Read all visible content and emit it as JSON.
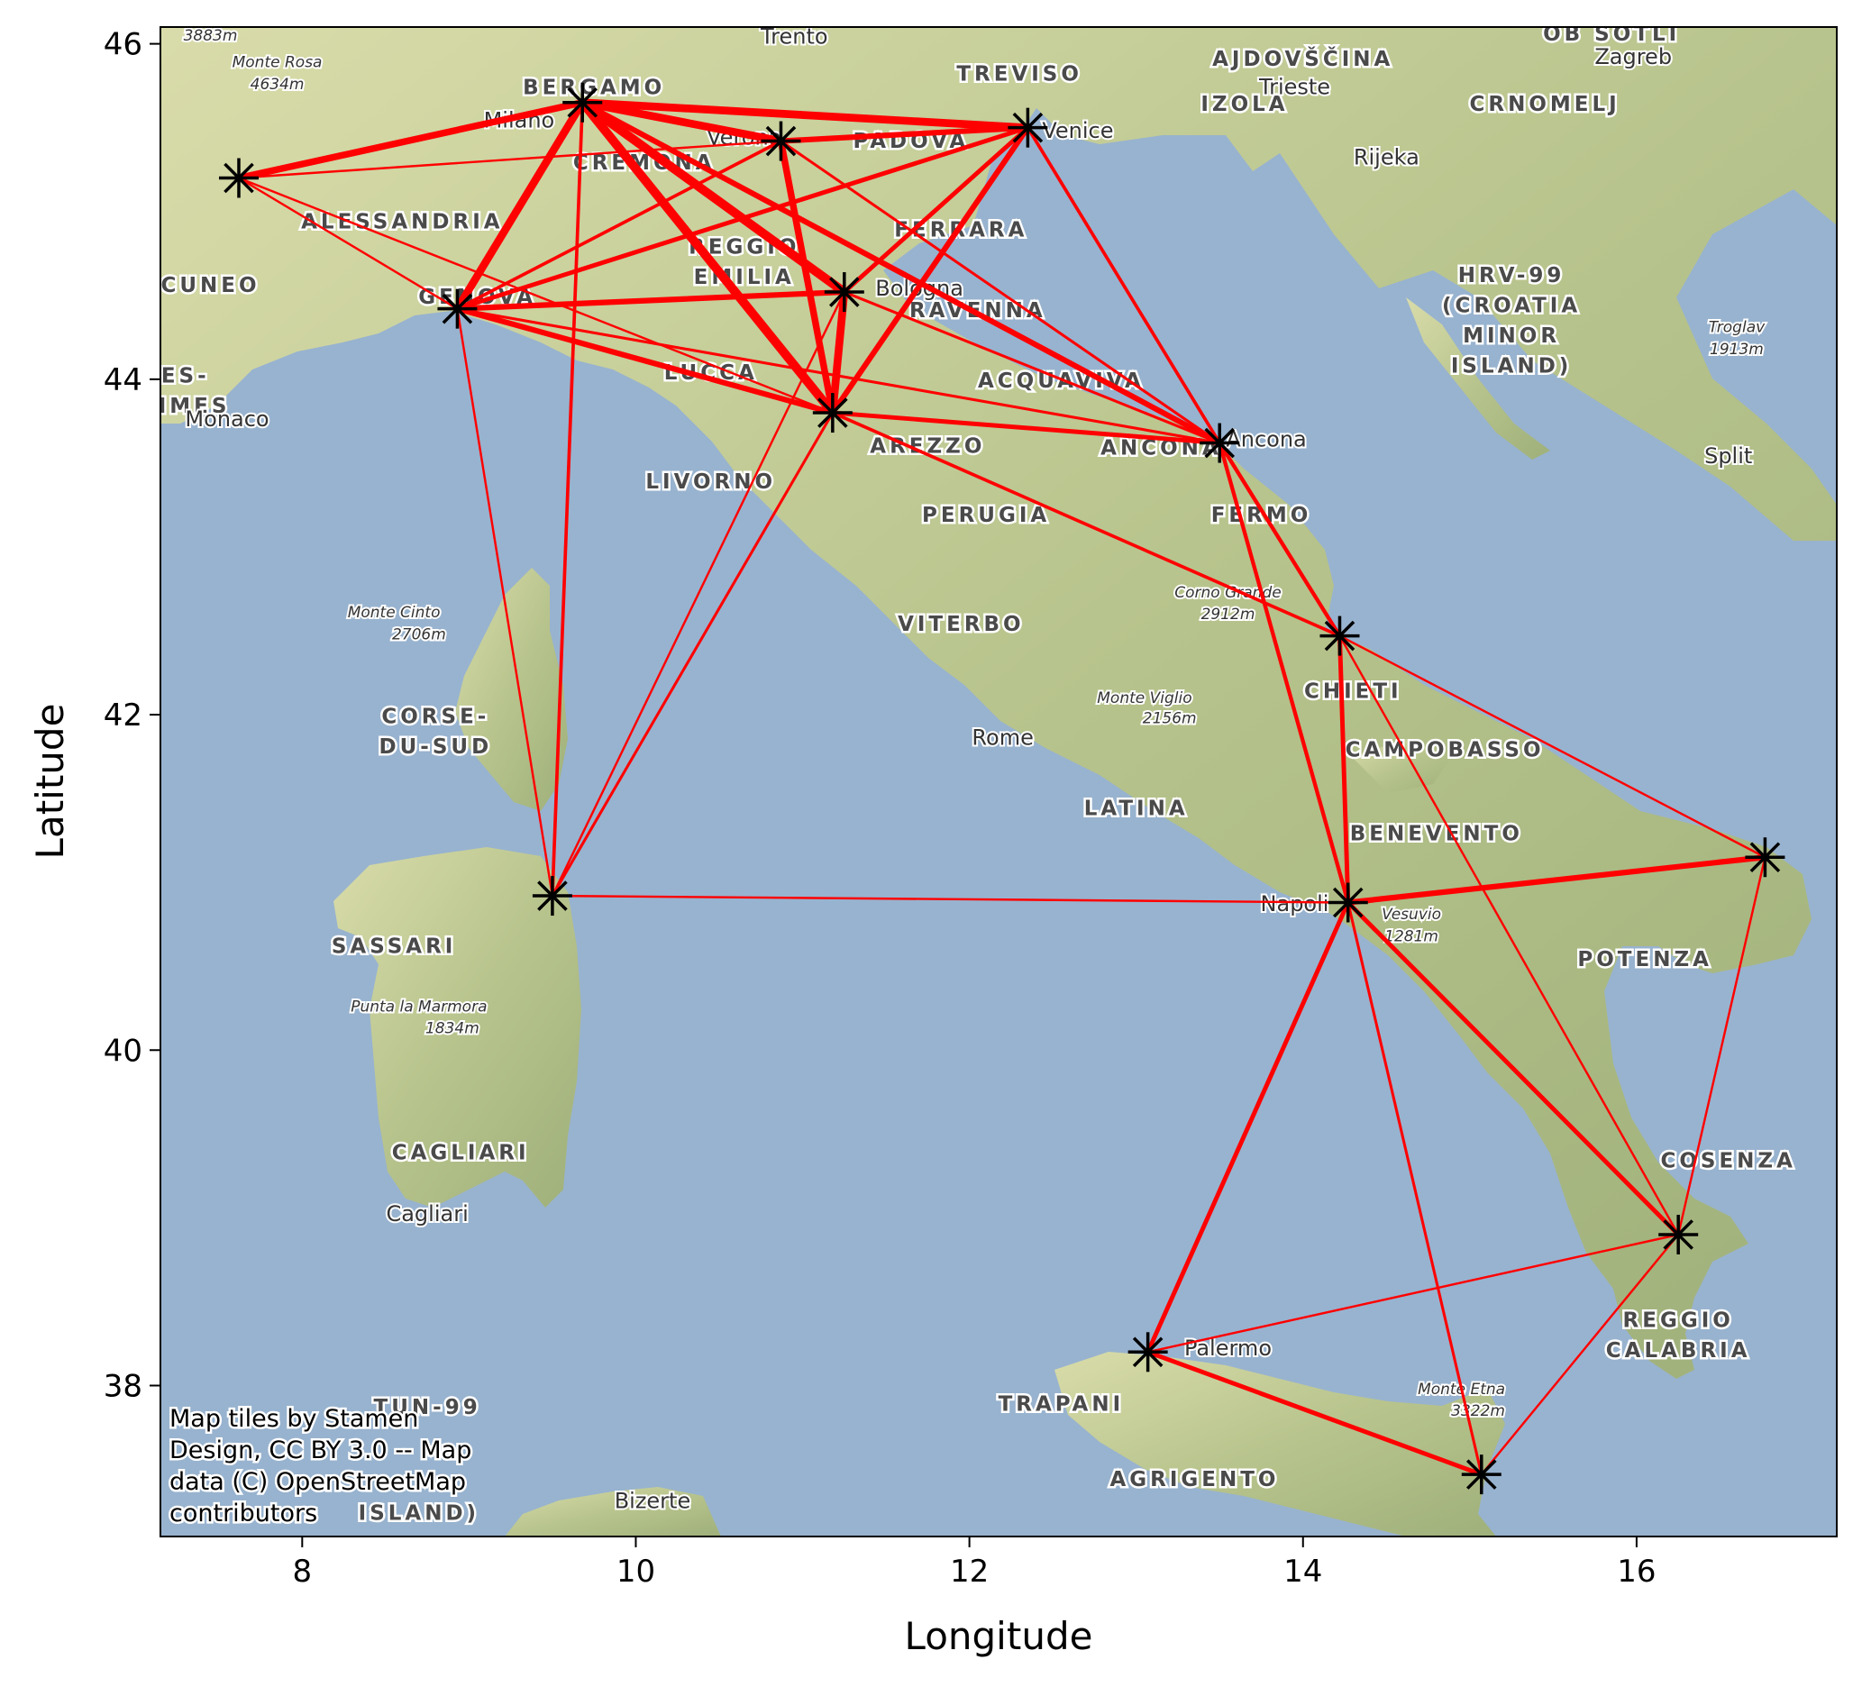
{
  "chart_data": {
    "type": "map-network",
    "xlabel": "Longitude",
    "ylabel": "Latitude",
    "xlim": [
      7.15,
      17.2
    ],
    "ylim": [
      37.1,
      46.1
    ],
    "xticks": [
      8,
      10,
      12,
      14,
      16
    ],
    "yticks": [
      38,
      40,
      42,
      44,
      46
    ],
    "marker": "black-asterisk",
    "edge_color": "#ff0000",
    "attribution": [
      "Map tiles by Stamen",
      "Design, CC BY 3.0 -- Map",
      "data (C) OpenStreetMap",
      "contributors"
    ],
    "nodes": [
      {
        "id": "n_torino",
        "lon": 7.62,
        "lat": 45.2
      },
      {
        "id": "n_milano",
        "lon": 9.68,
        "lat": 45.65
      },
      {
        "id": "n_verona",
        "lon": 10.87,
        "lat": 45.42
      },
      {
        "id": "n_venezia",
        "lon": 12.35,
        "lat": 45.5
      },
      {
        "id": "n_genova",
        "lon": 8.93,
        "lat": 44.42
      },
      {
        "id": "n_bologna",
        "lon": 11.25,
        "lat": 44.52
      },
      {
        "id": "n_firenze",
        "lon": 11.18,
        "lat": 43.8
      },
      {
        "id": "n_ancona",
        "lon": 13.5,
        "lat": 43.62
      },
      {
        "id": "n_pescara",
        "lon": 14.22,
        "lat": 42.47
      },
      {
        "id": "n_olbia",
        "lon": 9.5,
        "lat": 40.92
      },
      {
        "id": "n_napoli",
        "lon": 14.27,
        "lat": 40.88
      },
      {
        "id": "n_bari",
        "lon": 16.77,
        "lat": 41.15
      },
      {
        "id": "n_lamezia",
        "lon": 16.25,
        "lat": 38.9
      },
      {
        "id": "n_palermo",
        "lon": 13.07,
        "lat": 38.2
      },
      {
        "id": "n_catania",
        "lon": 15.07,
        "lat": 37.47
      }
    ],
    "edges": [
      {
        "from": "n_torino",
        "to": "n_milano",
        "weight": 5
      },
      {
        "from": "n_torino",
        "to": "n_verona",
        "weight": 1
      },
      {
        "from": "n_torino",
        "to": "n_genova",
        "weight": 1
      },
      {
        "from": "n_torino",
        "to": "n_firenze",
        "weight": 1
      },
      {
        "from": "n_milano",
        "to": "n_verona",
        "weight": 6
      },
      {
        "from": "n_milano",
        "to": "n_venezia",
        "weight": 6
      },
      {
        "from": "n_milano",
        "to": "n_genova",
        "weight": 6
      },
      {
        "from": "n_milano",
        "to": "n_bologna",
        "weight": 7
      },
      {
        "from": "n_milano",
        "to": "n_firenze",
        "weight": 7
      },
      {
        "from": "n_milano",
        "to": "n_ancona",
        "weight": 4
      },
      {
        "from": "n_milano",
        "to": "n_olbia",
        "weight": 2
      },
      {
        "from": "n_verona",
        "to": "n_venezia",
        "weight": 4
      },
      {
        "from": "n_verona",
        "to": "n_genova",
        "weight": 2
      },
      {
        "from": "n_verona",
        "to": "n_firenze",
        "weight": 5
      },
      {
        "from": "n_verona",
        "to": "n_ancona",
        "weight": 1.5
      },
      {
        "from": "n_venezia",
        "to": "n_genova",
        "weight": 3
      },
      {
        "from": "n_venezia",
        "to": "n_bologna",
        "weight": 3
      },
      {
        "from": "n_venezia",
        "to": "n_firenze",
        "weight": 4
      },
      {
        "from": "n_venezia",
        "to": "n_ancona",
        "weight": 2
      },
      {
        "from": "n_genova",
        "to": "n_bologna",
        "weight": 4
      },
      {
        "from": "n_genova",
        "to": "n_firenze",
        "weight": 4
      },
      {
        "from": "n_genova",
        "to": "n_ancona",
        "weight": 1.5
      },
      {
        "from": "n_genova",
        "to": "n_olbia",
        "weight": 1
      },
      {
        "from": "n_bologna",
        "to": "n_firenze",
        "weight": 6
      },
      {
        "from": "n_bologna",
        "to": "n_ancona",
        "weight": 1.5
      },
      {
        "from": "n_bologna",
        "to": "n_olbia",
        "weight": 1
      },
      {
        "from": "n_firenze",
        "to": "n_ancona",
        "weight": 3
      },
      {
        "from": "n_firenze",
        "to": "n_pescara",
        "weight": 2
      },
      {
        "from": "n_firenze",
        "to": "n_olbia",
        "weight": 1.5
      },
      {
        "from": "n_ancona",
        "to": "n_pescara",
        "weight": 2.5
      },
      {
        "from": "n_ancona",
        "to": "n_napoli",
        "weight": 2.5
      },
      {
        "from": "n_pescara",
        "to": "n_napoli",
        "weight": 3
      },
      {
        "from": "n_pescara",
        "to": "n_bari",
        "weight": 1
      },
      {
        "from": "n_pescara",
        "to": "n_lamezia",
        "weight": 1
      },
      {
        "from": "n_olbia",
        "to": "n_napoli",
        "weight": 1
      },
      {
        "from": "n_napoli",
        "to": "n_bari",
        "weight": 4
      },
      {
        "from": "n_napoli",
        "to": "n_lamezia",
        "weight": 3
      },
      {
        "from": "n_napoli",
        "to": "n_palermo",
        "weight": 3
      },
      {
        "from": "n_napoli",
        "to": "n_catania",
        "weight": 1.5
      },
      {
        "from": "n_bari",
        "to": "n_lamezia",
        "weight": 1
      },
      {
        "from": "n_lamezia",
        "to": "n_palermo",
        "weight": 1
      },
      {
        "from": "n_lamezia",
        "to": "n_catania",
        "weight": 1
      },
      {
        "from": "n_palermo",
        "to": "n_catania",
        "weight": 3
      }
    ]
  },
  "map_labels": {
    "regions": [
      {
        "id": "bergamo",
        "text": "BERGAMO",
        "lon": 9.75,
        "lat": 45.7
      },
      {
        "id": "treviso",
        "text": "TREVISO",
        "lon": 12.3,
        "lat": 45.78
      },
      {
        "id": "ajdovscina",
        "text": "AJDOVŠČINA",
        "lon": 14.0,
        "lat": 45.87
      },
      {
        "id": "ob-sotli",
        "text": "OB SOTLI",
        "lon": 15.85,
        "lat": 46.02
      },
      {
        "id": "izola",
        "text": "IZOLA",
        "lon": 13.65,
        "lat": 45.6
      },
      {
        "id": "crnomelj",
        "text": "CRNOMELJ",
        "lon": 15.45,
        "lat": 45.6
      },
      {
        "id": "cremona",
        "text": "CREMONA",
        "lon": 10.05,
        "lat": 45.25
      },
      {
        "id": "padova",
        "text": "PADOVA",
        "lon": 11.65,
        "lat": 45.38
      },
      {
        "id": "alessandria",
        "text": "ALESSANDRIA",
        "lon": 8.6,
        "lat": 44.9
      },
      {
        "id": "cuneo",
        "text": "CUNEO",
        "lon": 7.45,
        "lat": 44.52
      },
      {
        "id": "genova",
        "text": "GENOVA",
        "lon": 9.05,
        "lat": 44.45
      },
      {
        "id": "reggio",
        "text": "REGGIO",
        "lon": 10.65,
        "lat": 44.75
      },
      {
        "id": "emilia",
        "text": "EMILIA",
        "lon": 10.65,
        "lat": 44.57
      },
      {
        "id": "ferrara",
        "text": "FERRARA",
        "lon": 11.95,
        "lat": 44.85
      },
      {
        "id": "ravenna",
        "text": "RAVENNA",
        "lon": 12.05,
        "lat": 44.37
      },
      {
        "id": "hrv99-a",
        "text": "HRV-99",
        "lon": 15.25,
        "lat": 44.58
      },
      {
        "id": "hrv99-b",
        "text": "(CROATIA",
        "lon": 15.25,
        "lat": 44.4
      },
      {
        "id": "hrv99-c",
        "text": "MINOR",
        "lon": 15.25,
        "lat": 44.22
      },
      {
        "id": "hrv99-d",
        "text": "ISLAND)",
        "lon": 15.25,
        "lat": 44.04
      },
      {
        "id": "lucca",
        "text": "LUCCA",
        "lon": 10.45,
        "lat": 44.0
      },
      {
        "id": "acquaviva",
        "text": "ACQUAVIVA",
        "lon": 12.55,
        "lat": 43.95
      },
      {
        "id": "maritimes-a",
        "text": "ES-",
        "lon": 7.3,
        "lat": 43.98
      },
      {
        "id": "maritimes-b",
        "text": "TIMES",
        "lon": 7.3,
        "lat": 43.8
      },
      {
        "id": "arezzo",
        "text": "AREZZO",
        "lon": 11.75,
        "lat": 43.56
      },
      {
        "id": "ancona",
        "text": "ANCONA",
        "lon": 13.15,
        "lat": 43.55
      },
      {
        "id": "livorno",
        "text": "LIVORNO",
        "lon": 10.45,
        "lat": 43.35
      },
      {
        "id": "perugia",
        "text": "PERUGIA",
        "lon": 12.1,
        "lat": 43.15
      },
      {
        "id": "fermo",
        "text": "FERMO",
        "lon": 13.75,
        "lat": 43.15
      },
      {
        "id": "viterbo",
        "text": "VITERBO",
        "lon": 11.95,
        "lat": 42.5
      },
      {
        "id": "chieti",
        "text": "CHIETI",
        "lon": 14.3,
        "lat": 42.1
      },
      {
        "id": "corse-a",
        "text": "CORSE-",
        "lon": 8.8,
        "lat": 41.95
      },
      {
        "id": "corse-b",
        "text": "DU-SUD",
        "lon": 8.8,
        "lat": 41.77
      },
      {
        "id": "campobasso",
        "text": "CAMPOBASSO",
        "lon": 14.85,
        "lat": 41.75
      },
      {
        "id": "latina",
        "text": "LATINA",
        "lon": 13.0,
        "lat": 41.4
      },
      {
        "id": "benevento",
        "text": "BENEVENTO",
        "lon": 14.8,
        "lat": 41.25
      },
      {
        "id": "sassari",
        "text": "SASSARI",
        "lon": 8.55,
        "lat": 40.58
      },
      {
        "id": "potenza",
        "text": "POTENZA",
        "lon": 16.05,
        "lat": 40.5
      },
      {
        "id": "cosenza",
        "text": "COSENZA",
        "lon": 16.55,
        "lat": 39.3
      },
      {
        "id": "cagliari-region",
        "text": "CAGLIARI",
        "lon": 8.95,
        "lat": 39.35
      },
      {
        "id": "reggio-cal-a",
        "text": "REGGIO",
        "lon": 16.25,
        "lat": 38.35
      },
      {
        "id": "reggio-cal-b",
        "text": "CALABRIA",
        "lon": 16.25,
        "lat": 38.17
      },
      {
        "id": "trapani",
        "text": "TRAPANI",
        "lon": 12.55,
        "lat": 37.85
      },
      {
        "id": "agrigento",
        "text": "AGRIGENTO",
        "lon": 13.35,
        "lat": 37.4
      },
      {
        "id": "tun99-a",
        "text": "TUN-99",
        "lon": 8.75,
        "lat": 37.83
      },
      {
        "id": "tun99-b",
        "text": "ISLAND)",
        "lon": 8.7,
        "lat": 37.2
      }
    ],
    "cities": [
      {
        "id": "trento",
        "text": "Trento",
        "lon": 10.95,
        "lat": 46.0
      },
      {
        "id": "zagreb",
        "text": "Zagreb",
        "lon": 15.98,
        "lat": 45.88
      },
      {
        "id": "trieste",
        "text": "Trieste",
        "lon": 13.95,
        "lat": 45.7
      },
      {
        "id": "milano",
        "text": "Milano",
        "lon": 9.3,
        "lat": 45.5
      },
      {
        "id": "verona",
        "text": "Verona",
        "lon": 10.65,
        "lat": 45.4
      },
      {
        "id": "venice",
        "text": "Venice",
        "lon": 12.65,
        "lat": 45.44
      },
      {
        "id": "rijeka",
        "text": "Rijeka",
        "lon": 14.5,
        "lat": 45.28
      },
      {
        "id": "bologna",
        "text": "Bologna",
        "lon": 11.7,
        "lat": 44.5
      },
      {
        "id": "monaco",
        "text": "Monaco",
        "lon": 7.55,
        "lat": 43.72
      },
      {
        "id": "ancona-city",
        "text": "Ancona",
        "lon": 13.78,
        "lat": 43.6
      },
      {
        "id": "split",
        "text": "Split",
        "lon": 16.55,
        "lat": 43.5
      },
      {
        "id": "rome",
        "text": "Rome",
        "lon": 12.2,
        "lat": 41.82
      },
      {
        "id": "napoli",
        "text": "Napoli",
        "lon": 13.95,
        "lat": 40.83
      },
      {
        "id": "cagliari-city",
        "text": "Cagliari",
        "lon": 8.75,
        "lat": 38.98
      },
      {
        "id": "palermo",
        "text": "Palermo",
        "lon": 13.55,
        "lat": 38.18
      },
      {
        "id": "bizerte",
        "text": "Bizerte",
        "lon": 10.1,
        "lat": 37.27
      }
    ],
    "peaks": [
      {
        "id": "p3883",
        "text": "3883m",
        "lon": 7.45,
        "lat": 46.02
      },
      {
        "id": "rosa-a",
        "text": "Monte Rosa",
        "lon": 7.85,
        "lat": 45.86
      },
      {
        "id": "rosa-b",
        "text": "4634m",
        "lon": 7.85,
        "lat": 45.73
      },
      {
        "id": "troglav-a",
        "text": "Troglav",
        "lon": 16.6,
        "lat": 44.28
      },
      {
        "id": "troglav-b",
        "text": "1913m",
        "lon": 16.6,
        "lat": 44.15
      },
      {
        "id": "corno-a",
        "text": "Corno Grande",
        "lon": 13.55,
        "lat": 42.7
      },
      {
        "id": "corno-b",
        "text": "2912m",
        "lon": 13.55,
        "lat": 42.57
      },
      {
        "id": "cinto-a",
        "text": "Monte Cinto",
        "lon": 8.55,
        "lat": 42.58
      },
      {
        "id": "cinto-b",
        "text": "2706m",
        "lon": 8.7,
        "lat": 42.45
      },
      {
        "id": "viglio-a",
        "text": "Monte Viglio",
        "lon": 13.05,
        "lat": 42.07
      },
      {
        "id": "viglio-b",
        "text": "2156m",
        "lon": 13.2,
        "lat": 41.95
      },
      {
        "id": "vesuvio-a",
        "text": "Vesuvio",
        "lon": 14.65,
        "lat": 40.78
      },
      {
        "id": "vesuvio-b",
        "text": "1281m",
        "lon": 14.65,
        "lat": 40.65
      },
      {
        "id": "marmora-a",
        "text": "Punta la Marmora",
        "lon": 8.7,
        "lat": 40.23
      },
      {
        "id": "marmora-b",
        "text": "1834m",
        "lon": 8.9,
        "lat": 40.1
      },
      {
        "id": "etna-a",
        "text": "Monte Etna",
        "lon": 14.95,
        "lat": 37.95
      },
      {
        "id": "etna-b",
        "text": "3322m",
        "lon": 15.05,
        "lat": 37.82
      }
    ]
  }
}
